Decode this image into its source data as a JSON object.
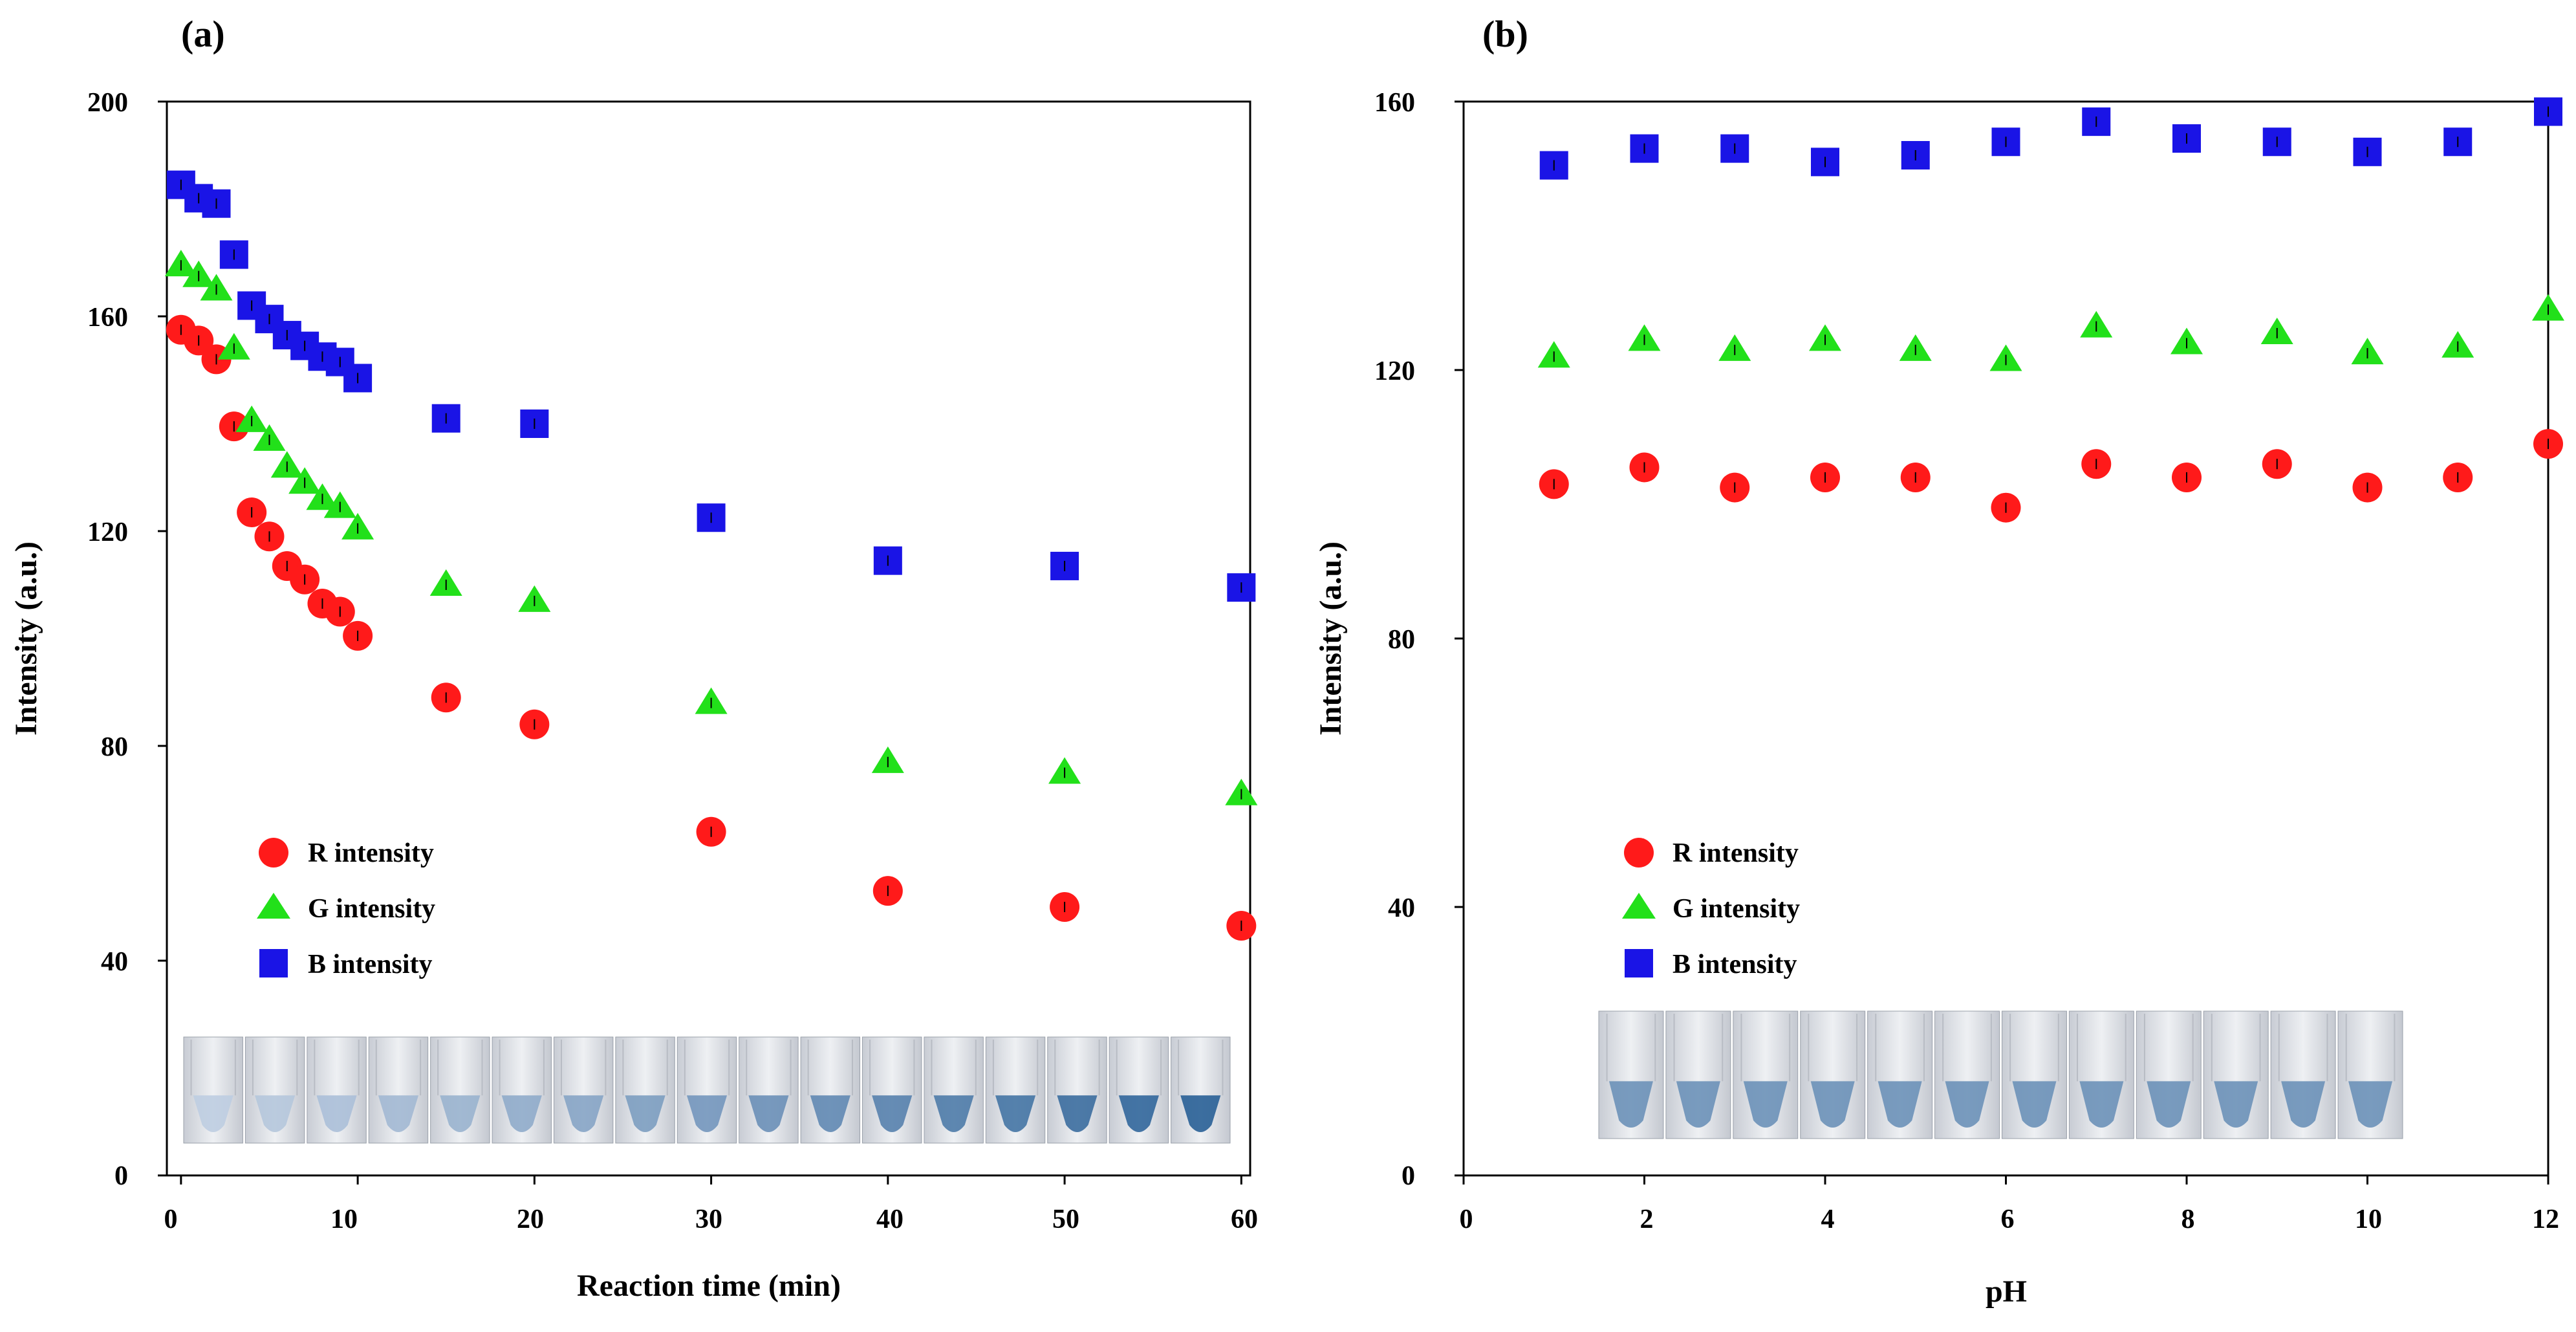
{
  "colors": {
    "r": "#ff1a1a",
    "g": "#22e01a",
    "b": "#1a14e6",
    "axis": "#000000"
  },
  "chart_data": [
    {
      "panel": "(a)",
      "type": "scatter",
      "xlabel": "Reaction time (min)",
      "ylabel": "Intensity (a.u.)",
      "xlim": [
        -0.8,
        60.5
      ],
      "ylim": [
        0,
        200
      ],
      "xticks": [
        0,
        10,
        20,
        30,
        40,
        50,
        60
      ],
      "yticks": [
        0,
        40,
        80,
        120,
        160,
        200
      ],
      "legend_position": "lower-left",
      "series": [
        {
          "name": "R intensity",
          "marker": "circle",
          "x": [
            0,
            1,
            2,
            3,
            4,
            5,
            6,
            7,
            8,
            9,
            10,
            15,
            20,
            30,
            40,
            50,
            60
          ],
          "y": [
            157.5,
            155.5,
            152,
            139.5,
            123.5,
            119,
            113.5,
            111,
            106.5,
            105,
            100.5,
            89,
            84,
            64,
            53,
            50,
            46.5
          ]
        },
        {
          "name": "G intensity",
          "marker": "triangle",
          "x": [
            0,
            1,
            2,
            3,
            4,
            5,
            6,
            7,
            8,
            9,
            10,
            15,
            20,
            30,
            40,
            50,
            60
          ],
          "y": [
            169.5,
            167.5,
            165,
            154,
            140.5,
            137,
            132,
            129,
            126,
            124.5,
            120.5,
            110,
            107,
            88,
            77,
            75,
            71
          ]
        },
        {
          "name": "B intensity",
          "marker": "square",
          "x": [
            0,
            1,
            2,
            3,
            4,
            5,
            6,
            7,
            8,
            9,
            10,
            15,
            20,
            30,
            40,
            50,
            60
          ],
          "y": [
            184.5,
            182,
            181,
            171.5,
            162,
            159.5,
            156.5,
            154.5,
            152.5,
            151.5,
            148.5,
            141,
            140,
            122.5,
            114.5,
            113.5,
            109.5
          ]
        }
      ]
    },
    {
      "panel": "(b)",
      "type": "scatter",
      "xlabel": "pH",
      "ylabel": "Intensity (a.u.)",
      "xlim": [
        0,
        12
      ],
      "ylim": [
        0,
        160
      ],
      "xticks": [
        0,
        2,
        4,
        6,
        8,
        10,
        12
      ],
      "yticks": [
        0,
        40,
        80,
        120,
        160
      ],
      "legend_position": "lower-left",
      "series": [
        {
          "name": "R intensity",
          "marker": "circle",
          "x": [
            1,
            2,
            3,
            4,
            5,
            6,
            7,
            8,
            9,
            10,
            11,
            12
          ],
          "y": [
            103,
            105.5,
            102.5,
            104,
            104,
            99.5,
            106,
            104,
            106,
            102.5,
            104,
            109
          ]
        },
        {
          "name": "G intensity",
          "marker": "triangle",
          "x": [
            1,
            2,
            3,
            4,
            5,
            6,
            7,
            8,
            9,
            10,
            11,
            12
          ],
          "y": [
            122,
            124.5,
            123,
            124.5,
            123,
            121.5,
            126.5,
            124,
            125.5,
            122.5,
            123.5,
            129
          ]
        },
        {
          "name": "B intensity",
          "marker": "square",
          "x": [
            1,
            2,
            3,
            4,
            5,
            6,
            7,
            8,
            9,
            10,
            11,
            12
          ],
          "y": [
            150.5,
            153,
            153,
            151,
            152,
            154,
            157,
            154.5,
            154,
            152.5,
            154,
            158.5
          ]
        }
      ]
    }
  ]
}
